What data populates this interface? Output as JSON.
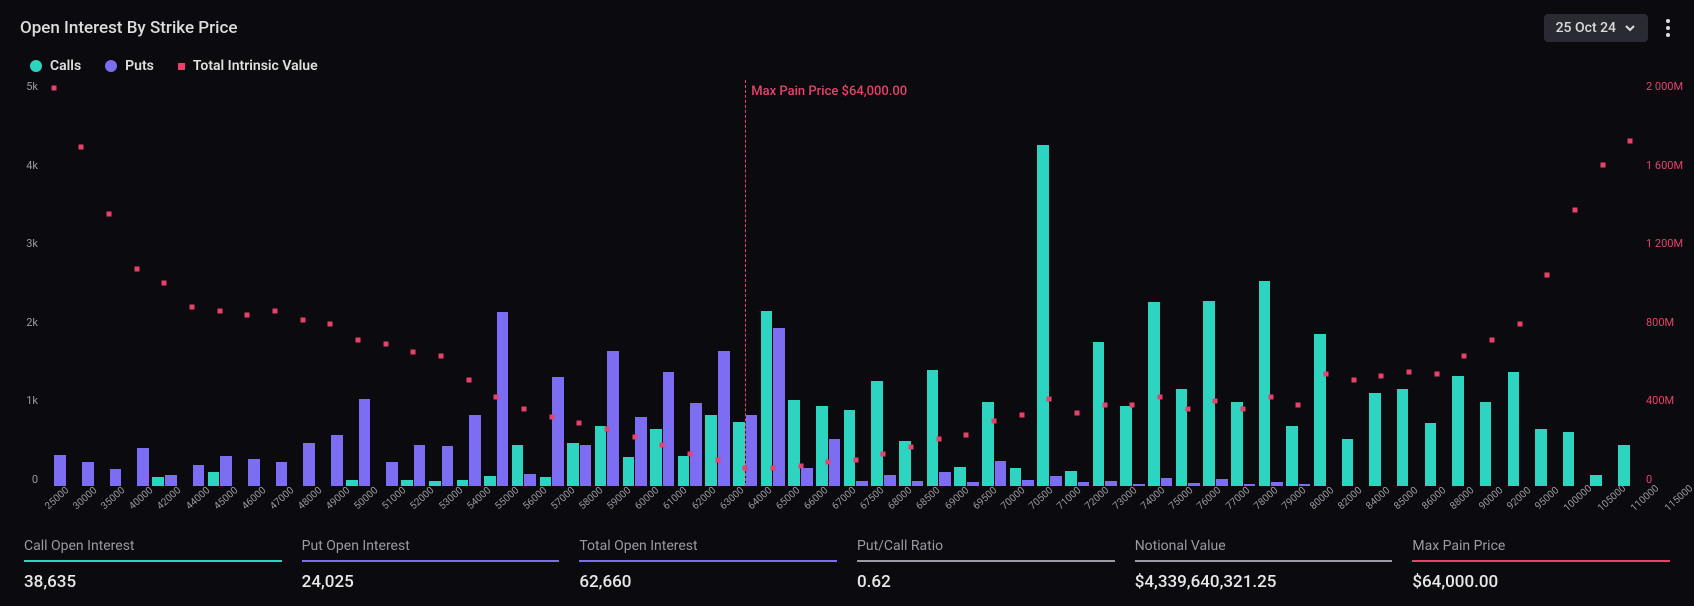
{
  "title": "Open Interest By Strike Price",
  "date_selector": {
    "label": "25 Oct 24"
  },
  "legend": {
    "calls": "Calls",
    "puts": "Puts",
    "intrinsic": "Total Intrinsic Value"
  },
  "colors": {
    "calls": "#2dd4bf",
    "puts": "#7c6df2",
    "intrinsic": "#e8416b",
    "bg": "#0a0a0f",
    "text": "#dcdcdc",
    "muted": "#9a9aa5",
    "stat_calls": "#2dd4bf",
    "stat_puts": "#7c6df2",
    "stat_total": "#7c6df2",
    "stat_ratio": "#9a9aa5",
    "stat_notional": "#9a9aa5",
    "stat_maxpain": "#e8416b"
  },
  "chart": {
    "y_left": {
      "max": 5000,
      "ticks": [
        "5k",
        "4k",
        "3k",
        "2k",
        "1k",
        "0"
      ]
    },
    "y_right": {
      "max": 2000,
      "ticks": [
        "2 000M",
        "1 600M",
        "1 200M",
        "800M",
        "400M",
        "0"
      ],
      "color": "#e8416b"
    },
    "max_pain": {
      "strike": 64000,
      "label": "Max Pain Price $64,000.00"
    },
    "strikes": [
      25000,
      30000,
      35000,
      40000,
      42000,
      44000,
      45000,
      46000,
      47000,
      48000,
      49000,
      50000,
      51000,
      52000,
      53000,
      54000,
      55000,
      56000,
      57000,
      58000,
      59000,
      60000,
      61000,
      62000,
      63000,
      64000,
      65000,
      66000,
      67000,
      67500,
      68000,
      68500,
      69000,
      69500,
      70000,
      70500,
      71000,
      72000,
      73000,
      74000,
      75000,
      76000,
      77000,
      78000,
      79000,
      80000,
      82000,
      84000,
      85000,
      86000,
      88000,
      90000,
      92000,
      95000,
      100000,
      105000,
      110000,
      115000
    ],
    "calls_oi": [
      0,
      0,
      0,
      0,
      110,
      0,
      170,
      0,
      0,
      0,
      0,
      70,
      0,
      80,
      60,
      80,
      120,
      510,
      110,
      530,
      740,
      360,
      700,
      370,
      880,
      790,
      2150,
      1060,
      980,
      940,
      1290,
      560,
      1430,
      240,
      1040,
      220,
      4200,
      190,
      1770,
      990,
      2270,
      1200,
      2280,
      1040,
      2520,
      740,
      1870,
      580,
      1140,
      1200,
      780,
      1350,
      1040,
      1400,
      700,
      660,
      140,
      510
    ],
    "puts_oi": [
      380,
      300,
      210,
      470,
      140,
      260,
      370,
      330,
      300,
      530,
      630,
      1070,
      300,
      500,
      490,
      870,
      2140,
      150,
      1340,
      510,
      1660,
      850,
      1410,
      1020,
      1660,
      870,
      1950,
      220,
      580,
      60,
      140,
      60,
      170,
      50,
      310,
      80,
      120,
      50,
      60,
      30,
      100,
      40,
      90,
      30,
      50,
      20,
      0,
      0,
      0,
      0,
      0,
      0,
      0,
      0,
      0,
      0,
      0,
      0
    ],
    "intrinsic": [
      1960,
      1670,
      1340,
      1070,
      1000,
      880,
      860,
      840,
      860,
      820,
      800,
      720,
      700,
      660,
      640,
      520,
      440,
      380,
      340,
      310,
      280,
      240,
      200,
      160,
      130,
      90,
      90,
      100,
      120,
      130,
      160,
      190,
      230,
      250,
      320,
      350,
      430,
      360,
      400,
      400,
      440,
      380,
      420,
      380,
      440,
      400,
      550,
      520,
      540,
      560,
      550,
      640,
      720,
      800,
      1040,
      1360,
      1580,
      1700
    ]
  },
  "stats": [
    {
      "label": "Call Open Interest",
      "value": "38,635",
      "color_key": "stat_calls"
    },
    {
      "label": "Put Open Interest",
      "value": "24,025",
      "color_key": "stat_puts"
    },
    {
      "label": "Total Open Interest",
      "value": "62,660",
      "color_key": "stat_total"
    },
    {
      "label": "Put/Call Ratio",
      "value": "0.62",
      "color_key": "stat_ratio"
    },
    {
      "label": "Notional Value",
      "value": "$4,339,640,321.25",
      "color_key": "stat_notional"
    },
    {
      "label": "Max Pain Price",
      "value": "$64,000.00",
      "color_key": "stat_maxpain"
    }
  ]
}
